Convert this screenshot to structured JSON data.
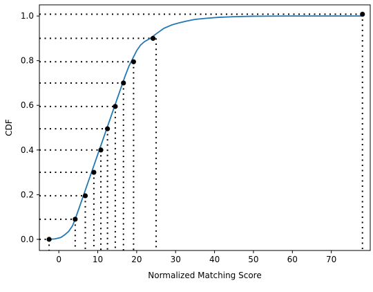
{
  "chart_data": {
    "type": "line",
    "title": "",
    "xlabel": "Normalized Matching Score",
    "ylabel": "CDF",
    "xlim": [
      -5,
      80
    ],
    "ylim": [
      -0.05,
      1.05
    ],
    "x_ticks": [
      0,
      10,
      20,
      30,
      40,
      50,
      60,
      70
    ],
    "x_tick_labels": [
      "0",
      "10",
      "20",
      "30",
      "40",
      "50",
      "60",
      "70"
    ],
    "y_ticks": [
      0.0,
      0.2,
      0.4,
      0.6,
      0.8,
      1.0
    ],
    "y_tick_labels": [
      "0.0",
      "0.2",
      "0.4",
      "0.6",
      "0.8",
      "1.0"
    ],
    "grid": false,
    "colors": {
      "line": "#1f77b4",
      "markers": "#000000",
      "guides": "#000000"
    },
    "series": [
      {
        "x": [
          -2.5,
          -1.0,
          0.5,
          1.5,
          2.5,
          3.5,
          4.2,
          5.0,
          6.0,
          7.0,
          8.0,
          9.0,
          10.0,
          11.0,
          12.0,
          13.0,
          14.0,
          15.0,
          16.0,
          17.0,
          18.0,
          19.0,
          20.0,
          21.0,
          22.0,
          23.5,
          25.0,
          27.0,
          29.0,
          31.0,
          33.0,
          35.0,
          38.0,
          41.0,
          45.0,
          50.0,
          60.0,
          70.0,
          78.0
        ],
        "y": [
          0.0,
          0.002,
          0.008,
          0.02,
          0.035,
          0.06,
          0.09,
          0.13,
          0.18,
          0.23,
          0.28,
          0.33,
          0.38,
          0.43,
          0.48,
          0.53,
          0.58,
          0.63,
          0.68,
          0.73,
          0.775,
          0.81,
          0.845,
          0.87,
          0.885,
          0.9,
          0.92,
          0.945,
          0.96,
          0.97,
          0.978,
          0.985,
          0.99,
          0.994,
          0.997,
          0.999,
          1.0,
          1.0,
          1.0
        ]
      }
    ],
    "markers": {
      "x": [
        -2.5,
        4.2,
        6.8,
        9.0,
        10.8,
        12.5,
        14.5,
        16.6,
        19.2,
        24.2,
        78.0
      ],
      "y": [
        0.0,
        0.09,
        0.195,
        0.3,
        0.4,
        0.495,
        0.595,
        0.7,
        0.795,
        0.9,
        1.008
      ]
    },
    "guide_vertical_x": [
      -2.5,
      4.2,
      6.8,
      9.0,
      10.8,
      12.5,
      14.5,
      16.6,
      19.2,
      25.0,
      78.0
    ]
  }
}
